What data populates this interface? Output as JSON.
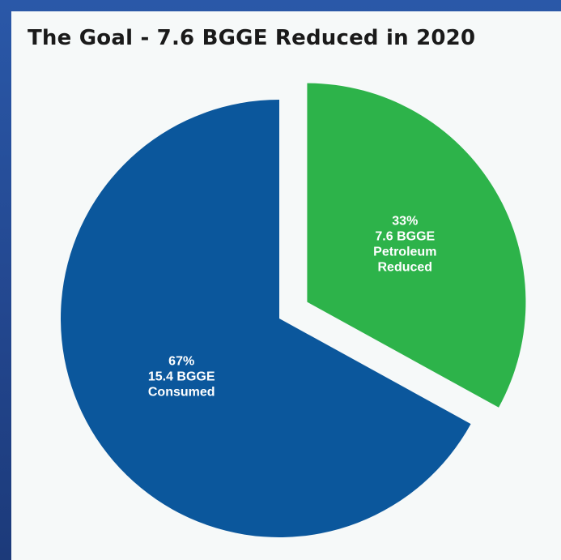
{
  "chart_data": {
    "type": "pie",
    "title": "The Goal - 7.6 BGGE Reduced in 2020",
    "slices": [
      {
        "percent": 33,
        "value": 7.6,
        "color": "#2db34a",
        "exploded": true,
        "label_lines": [
          "33%",
          "7.6 BGGE",
          "Petroleum",
          "Reduced"
        ]
      },
      {
        "percent": 67,
        "value": 15.4,
        "color": "#0b579c",
        "exploded": false,
        "label_lines": [
          "67%",
          "15.4 BGGE",
          "Consumed"
        ]
      }
    ]
  }
}
